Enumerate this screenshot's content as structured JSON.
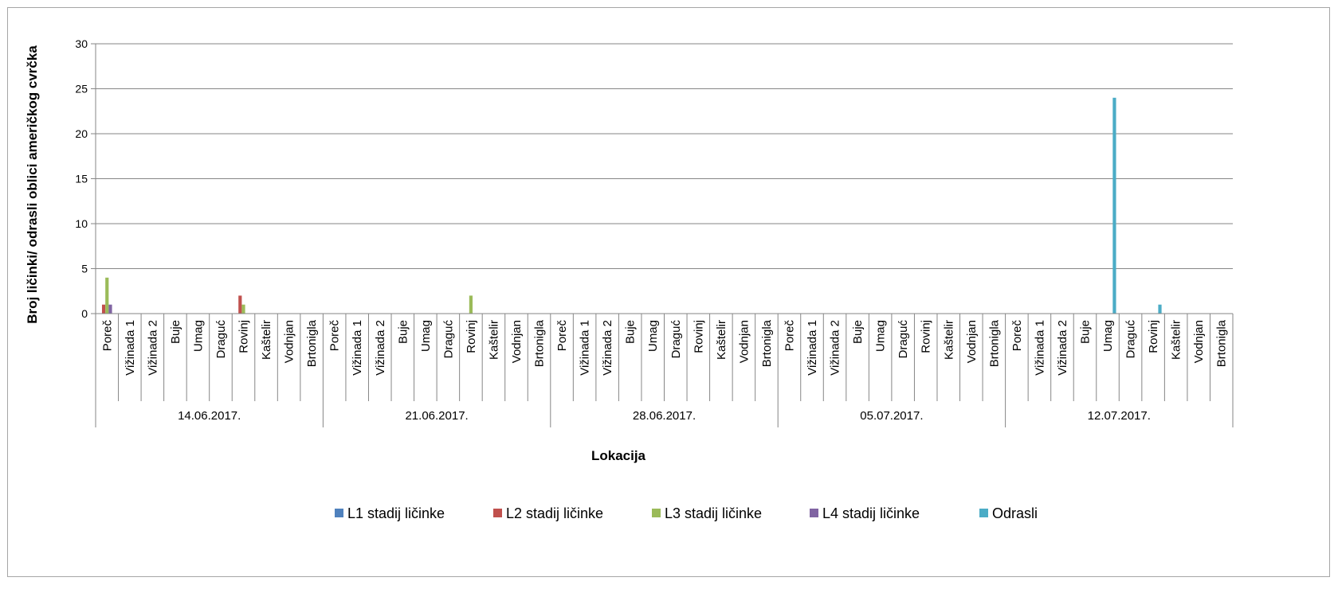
{
  "chart_data": {
    "type": "bar",
    "title": "",
    "xlabel": "Lokacija",
    "ylabel": "Broj ličinki/ odrasli oblici američkog cvrčka",
    "ylim": [
      0,
      30
    ],
    "yticks": [
      0,
      5,
      10,
      15,
      20,
      25,
      30
    ],
    "grid": true,
    "legend_position": "bottom",
    "groups": [
      {
        "label": "14.06.2017.",
        "categories": [
          "Poreč",
          "Vižinada 1",
          "Vižinada 2",
          "Buje",
          "Umag",
          "Draguć",
          "Rovinj",
          "Kaštelir",
          "Vodnjan",
          "Brtonigla"
        ]
      },
      {
        "label": "21.06.2017.",
        "categories": [
          "Poreč",
          "Vižinada 1",
          "Vižinada 2",
          "Buje",
          "Umag",
          "Draguć",
          "Rovinj",
          "Kaštelir",
          "Vodnjan",
          "Brtonigla"
        ]
      },
      {
        "label": "28.06.2017.",
        "categories": [
          "Poreč",
          "Vižinada 1",
          "Vižinada 2",
          "Buje",
          "Umag",
          "Draguć",
          "Rovinj",
          "Kaštelir",
          "Vodnjan",
          "Brtonigla"
        ]
      },
      {
        "label": "05.07.2017.",
        "categories": [
          "Poreč",
          "Vižinada 1",
          "Vižinada 2",
          "Buje",
          "Umag",
          "Draguć",
          "Rovinj",
          "Kaštelir",
          "Vodnjan",
          "Brtonigla"
        ]
      },
      {
        "label": "12.07.2017.",
        "categories": [
          "Poreč",
          "Vižinada 1",
          "Vižinada 2",
          "Buje",
          "Umag",
          "Draguć",
          "Rovinj",
          "Kaštelir",
          "Vodnjan",
          "Brtonigla"
        ]
      }
    ],
    "series": [
      {
        "name": "L1 stadij ličinke",
        "color": "#4f81bd",
        "values": [
          0,
          0,
          0,
          0,
          0,
          0,
          0,
          0,
          0,
          0,
          0,
          0,
          0,
          0,
          0,
          0,
          0,
          0,
          0,
          0,
          0,
          0,
          0,
          0,
          0,
          0,
          0,
          0,
          0,
          0,
          0,
          0,
          0,
          0,
          0,
          0,
          0,
          0,
          0,
          0,
          0,
          0,
          0,
          0,
          0,
          0,
          0,
          0,
          0,
          0
        ]
      },
      {
        "name": "L2 stadij ličinke",
        "color": "#c0504d",
        "values": [
          1,
          0,
          0,
          0,
          0,
          0,
          2,
          0,
          0,
          0,
          0,
          0,
          0,
          0,
          0,
          0,
          0,
          0,
          0,
          0,
          0,
          0,
          0,
          0,
          0,
          0,
          0,
          0,
          0,
          0,
          0,
          0,
          0,
          0,
          0,
          0,
          0,
          0,
          0,
          0,
          0,
          0,
          0,
          0,
          0,
          0,
          0,
          0,
          0,
          0
        ]
      },
      {
        "name": "L3 stadij ličinke",
        "color": "#9bbb59",
        "values": [
          4,
          0,
          0,
          0,
          0,
          0,
          1,
          0,
          0,
          0,
          0,
          0,
          0,
          0,
          0,
          0,
          2,
          0,
          0,
          0,
          0,
          0,
          0,
          0,
          0,
          0,
          0,
          0,
          0,
          0,
          0,
          0,
          0,
          0,
          0,
          0,
          0,
          0,
          0,
          0,
          0,
          0,
          0,
          0,
          0,
          0,
          0,
          0,
          0,
          0
        ]
      },
      {
        "name": "L4 stadij ličinke",
        "color": "#8064a2",
        "values": [
          1,
          0,
          0,
          0,
          0,
          0,
          0,
          0,
          0,
          0,
          0,
          0,
          0,
          0,
          0,
          0,
          0,
          0,
          0,
          0,
          0,
          0,
          0,
          0,
          0,
          0,
          0,
          0,
          0,
          0,
          0,
          0,
          0,
          0,
          0,
          0,
          0,
          0,
          0,
          0,
          0,
          0,
          0,
          0,
          0,
          0,
          0,
          0,
          0,
          0
        ]
      },
      {
        "name": "Odrasli",
        "color": "#4bacc6",
        "values": [
          0,
          0,
          0,
          0,
          0,
          0,
          0,
          0,
          0,
          0,
          0,
          0,
          0,
          0,
          0,
          0,
          0,
          0,
          0,
          0,
          0,
          0,
          0,
          0,
          0,
          0,
          0,
          0,
          0,
          0,
          0,
          0,
          0,
          0,
          0,
          0,
          0,
          0,
          0,
          0,
          0,
          0,
          0,
          0,
          24,
          0,
          1,
          0,
          0,
          0
        ]
      }
    ]
  }
}
